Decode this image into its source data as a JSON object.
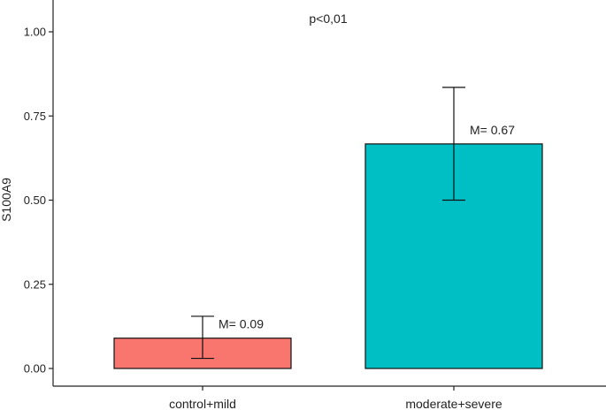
{
  "chart_data": {
    "type": "bar",
    "title": "",
    "xlabel": "",
    "ylabel": "S100A9",
    "ylim": [
      0,
      1.05
    ],
    "yticks": [
      "0.00",
      "0.25",
      "0.50",
      "0.75",
      "1.00"
    ],
    "categories": [
      "control+mild",
      "moderate+severe"
    ],
    "values": [
      0.09,
      0.667
    ],
    "error_low": [
      0.03,
      0.5
    ],
    "error_high": [
      0.155,
      0.835
    ],
    "mean_labels": [
      "M= 0.09",
      "M= 0.67"
    ],
    "bar_colors": [
      "#F8766D",
      "#00BFC4"
    ],
    "annotation": "p<0,01",
    "grid": false,
    "legend": "none"
  }
}
